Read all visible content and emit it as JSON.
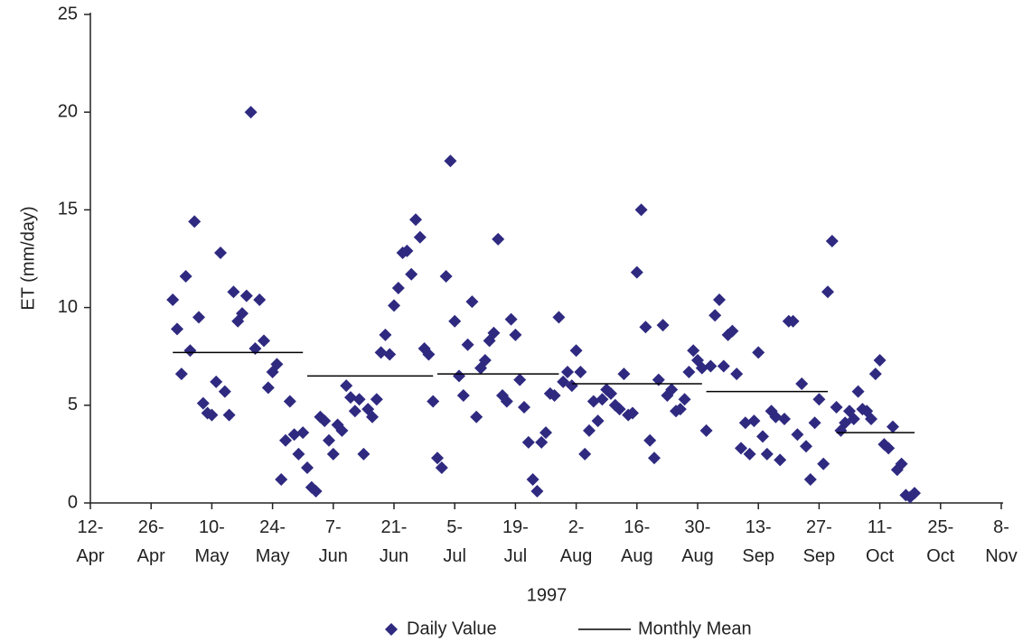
{
  "chart_data": {
    "type": "scatter",
    "y_label": "ET (mm/day)",
    "x_label": "1997",
    "xlim": [
      "1997-04-12",
      "1997-11-08"
    ],
    "xticks": [
      {
        "value": "1997-04-12",
        "label": "12-Apr"
      },
      {
        "value": "1997-04-26",
        "label": "26-Apr"
      },
      {
        "value": "1997-05-10",
        "label": "10-May"
      },
      {
        "value": "1997-05-24",
        "label": "24-May"
      },
      {
        "value": "1997-06-07",
        "label": "7-Jun"
      },
      {
        "value": "1997-06-21",
        "label": "21-Jun"
      },
      {
        "value": "1997-07-05",
        "label": "5-Jul"
      },
      {
        "value": "1997-07-19",
        "label": "19-Jul"
      },
      {
        "value": "1997-08-02",
        "label": "2-Aug"
      },
      {
        "value": "1997-08-16",
        "label": "16-Aug"
      },
      {
        "value": "1997-08-30",
        "label": "30-Aug"
      },
      {
        "value": "1997-09-13",
        "label": "13-Sep"
      },
      {
        "value": "1997-09-27",
        "label": "27-Sep"
      },
      {
        "value": "1997-10-11",
        "label": "11-Oct"
      },
      {
        "value": "1997-10-25",
        "label": "25-Oct"
      },
      {
        "value": "1997-11-08",
        "label": "8-Nov"
      }
    ],
    "ylim": [
      0,
      25
    ],
    "yticks": [
      0,
      5,
      10,
      15,
      20,
      25
    ],
    "grid": false,
    "legend": "bottom",
    "series": [
      {
        "name": "Daily Value",
        "color": "#2f2a80",
        "marker": "diamond",
        "x": [
          "1997-05-01",
          "1997-05-02",
          "1997-05-03",
          "1997-05-04",
          "1997-05-05",
          "1997-05-06",
          "1997-05-07",
          "1997-05-08",
          "1997-05-09",
          "1997-05-10",
          "1997-05-11",
          "1997-05-12",
          "1997-05-13",
          "1997-05-14",
          "1997-05-15",
          "1997-05-16",
          "1997-05-17",
          "1997-05-18",
          "1997-05-19",
          "1997-05-20",
          "1997-05-21",
          "1997-05-22",
          "1997-05-23",
          "1997-05-24",
          "1997-05-25",
          "1997-05-26",
          "1997-05-27",
          "1997-05-28",
          "1997-05-29",
          "1997-05-30",
          "1997-05-31",
          "1997-06-01",
          "1997-06-02",
          "1997-06-03",
          "1997-06-04",
          "1997-06-05",
          "1997-06-06",
          "1997-06-07",
          "1997-06-08",
          "1997-06-09",
          "1997-06-10",
          "1997-06-11",
          "1997-06-12",
          "1997-06-13",
          "1997-06-14",
          "1997-06-15",
          "1997-06-16",
          "1997-06-17",
          "1997-06-18",
          "1997-06-19",
          "1997-06-20",
          "1997-06-21",
          "1997-06-22",
          "1997-06-23",
          "1997-06-24",
          "1997-06-25",
          "1997-06-26",
          "1997-06-27",
          "1997-06-28",
          "1997-06-29",
          "1997-06-30",
          "1997-07-01",
          "1997-07-02",
          "1997-07-03",
          "1997-07-04",
          "1997-07-05",
          "1997-07-06",
          "1997-07-07",
          "1997-07-08",
          "1997-07-09",
          "1997-07-10",
          "1997-07-11",
          "1997-07-12",
          "1997-07-13",
          "1997-07-14",
          "1997-07-15",
          "1997-07-16",
          "1997-07-17",
          "1997-07-18",
          "1997-07-19",
          "1997-07-20",
          "1997-07-21",
          "1997-07-22",
          "1997-07-23",
          "1997-07-24",
          "1997-07-25",
          "1997-07-26",
          "1997-07-27",
          "1997-07-28",
          "1997-07-29",
          "1997-07-30",
          "1997-07-31",
          "1997-08-01",
          "1997-08-02",
          "1997-08-03",
          "1997-08-04",
          "1997-08-05",
          "1997-08-06",
          "1997-08-07",
          "1997-08-08",
          "1997-08-09",
          "1997-08-10",
          "1997-08-11",
          "1997-08-12",
          "1997-08-13",
          "1997-08-14",
          "1997-08-15",
          "1997-08-16",
          "1997-08-17",
          "1997-08-18",
          "1997-08-19",
          "1997-08-20",
          "1997-08-21",
          "1997-08-22",
          "1997-08-23",
          "1997-08-24",
          "1997-08-25",
          "1997-08-26",
          "1997-08-27",
          "1997-08-28",
          "1997-08-29",
          "1997-08-30",
          "1997-08-31",
          "1997-09-01",
          "1997-09-02",
          "1997-09-03",
          "1997-09-04",
          "1997-09-05",
          "1997-09-06",
          "1997-09-07",
          "1997-09-08",
          "1997-09-09",
          "1997-09-10",
          "1997-09-11",
          "1997-09-12",
          "1997-09-13",
          "1997-09-14",
          "1997-09-15",
          "1997-09-16",
          "1997-09-17",
          "1997-09-18",
          "1997-09-19",
          "1997-09-20",
          "1997-09-21",
          "1997-09-22",
          "1997-09-23",
          "1997-09-24",
          "1997-09-25",
          "1997-09-26",
          "1997-09-27",
          "1997-09-28",
          "1997-09-29",
          "1997-09-30",
          "1997-10-01",
          "1997-10-02",
          "1997-10-03",
          "1997-10-04",
          "1997-10-05",
          "1997-10-06",
          "1997-10-07",
          "1997-10-08",
          "1997-10-09",
          "1997-10-10",
          "1997-10-11",
          "1997-10-12",
          "1997-10-13",
          "1997-10-14",
          "1997-10-15",
          "1997-10-16",
          "1997-10-17",
          "1997-10-18",
          "1997-10-19"
        ],
        "values": [
          10.4,
          8.9,
          6.6,
          11.6,
          7.8,
          14.4,
          9.5,
          5.1,
          4.6,
          4.5,
          6.2,
          12.8,
          5.7,
          4.5,
          10.8,
          9.3,
          9.7,
          10.6,
          20.0,
          7.9,
          10.4,
          8.3,
          5.9,
          6.7,
          7.1,
          1.2,
          3.2,
          5.2,
          3.5,
          2.5,
          3.6,
          1.8,
          0.8,
          0.6,
          4.4,
          4.2,
          3.2,
          2.5,
          4.0,
          3.7,
          6.0,
          5.4,
          4.7,
          5.3,
          2.5,
          4.8,
          4.4,
          5.3,
          7.7,
          8.6,
          7.6,
          10.1,
          11.0,
          12.8,
          12.9,
          11.7,
          14.5,
          13.6,
          7.9,
          7.6,
          5.2,
          2.3,
          1.8,
          11.6,
          17.5,
          9.3,
          6.5,
          5.5,
          8.1,
          10.3,
          4.4,
          6.9,
          7.3,
          8.3,
          8.7,
          13.5,
          5.5,
          5.2,
          9.4,
          8.6,
          6.3,
          4.9,
          3.1,
          1.2,
          0.6,
          3.1,
          3.6,
          5.6,
          5.5,
          9.5,
          6.2,
          6.7,
          6.0,
          7.8,
          6.7,
          2.5,
          3.7,
          5.2,
          4.2,
          5.3,
          5.8,
          5.6,
          5.0,
          4.8,
          6.6,
          4.5,
          4.6,
          11.8,
          15.0,
          9.0,
          3.2,
          2.3,
          6.3,
          9.1,
          5.5,
          5.8,
          4.7,
          4.8,
          5.3,
          6.7,
          7.8,
          7.3,
          6.9,
          3.7,
          7.0,
          9.6,
          10.4,
          7.0,
          8.6,
          8.8,
          6.6,
          2.8,
          4.1,
          2.5,
          4.2,
          7.7,
          3.4,
          2.5,
          4.7,
          4.4,
          2.2,
          4.3,
          9.3,
          9.3,
          3.5,
          6.1,
          2.9,
          1.2,
          4.1,
          5.3,
          2.0,
          10.8,
          13.4,
          4.9,
          3.7,
          4.1,
          4.7,
          4.3,
          5.7,
          4.8,
          4.7,
          4.3,
          6.6,
          7.3,
          3.0,
          2.8,
          3.9,
          1.7,
          2.0,
          0.4,
          0.3,
          0.5
        ]
      },
      {
        "name": "Monthly Mean",
        "color": "#000000",
        "marker": "segment",
        "x_start": [
          "1997-05-01",
          "1997-06-01",
          "1997-07-01",
          "1997-08-01",
          "1997-09-01",
          "1997-10-01"
        ],
        "x_end": [
          "1997-05-31",
          "1997-06-30",
          "1997-07-29",
          "1997-08-31",
          "1997-09-29",
          "1997-10-19"
        ],
        "values": [
          7.7,
          6.5,
          6.6,
          6.1,
          5.7,
          3.6
        ]
      }
    ]
  }
}
